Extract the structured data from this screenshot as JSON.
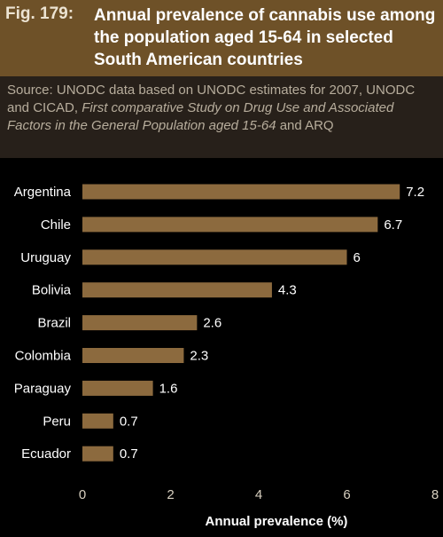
{
  "header": {
    "fig_label": "Fig. 179:",
    "title": "Annual prevalence of cannabis use among the population aged 15-64 in selected South American countries"
  },
  "source": {
    "lead": "Source: UNODC data based on UNODC estimates for 2007, UNODC and CICAD, ",
    "italic": "First comparative Study on Drug Use and Associated Factors in the General Population aged 15-64",
    "tail": " and ARQ"
  },
  "colors": {
    "bar": "#8c6a3e",
    "text": "#ffffff",
    "axis": "#d8d0c0"
  },
  "chart_data": {
    "type": "bar",
    "orientation": "horizontal",
    "categories": [
      "Argentina",
      "Chile",
      "Uruguay",
      "Bolivia",
      "Brazil",
      "Colombia",
      "Paraguay",
      "Peru",
      "Ecuador"
    ],
    "values": [
      7.2,
      6.7,
      6,
      4.3,
      2.6,
      2.3,
      1.6,
      0.7,
      0.7
    ],
    "value_labels": [
      "7.2",
      "6.7",
      "6",
      "4.3",
      "2.6",
      "2.3",
      "1.6",
      "0.7",
      "0.7"
    ],
    "xlabel": "Annual prevalence (%)",
    "xlim": [
      0,
      8
    ],
    "xticks": [
      "0",
      "2",
      "4",
      "6",
      "8"
    ],
    "grid": false,
    "legend": "none"
  }
}
